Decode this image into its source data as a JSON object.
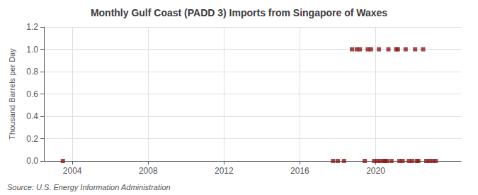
{
  "chart_data": {
    "type": "scatter",
    "title": "Monthly Gulf Coast (PADD 3) Imports from Singapore of Waxes",
    "ylabel": "Thousand Barrels per Day",
    "annotation": "Source: U.S. Energy Information Administration",
    "color": "#8b1a1a",
    "marker": "square",
    "grid": true,
    "xlim": [
      2002.5,
      2024.5
    ],
    "xticks": [
      2004,
      2008,
      2012,
      2016,
      2020
    ],
    "ylim": [
      0.0,
      1.2
    ],
    "yticks": [
      {
        "value": 0.0,
        "label": "0.0"
      },
      0.2,
      0.4,
      0.6,
      0.8,
      {
        "value": 1.0,
        "label": "1.0"
      },
      1.2
    ],
    "x": [
      2003.5,
      2017.75,
      2018.0,
      2018.33,
      2018.75,
      2019.0,
      2019.17,
      2019.42,
      2019.58,
      2019.75,
      2019.92,
      2020.08,
      2020.17,
      2020.25,
      2020.42,
      2020.5,
      2020.58,
      2020.67,
      2020.83,
      2021.08,
      2021.17,
      2021.25,
      2021.42,
      2021.58,
      2021.75,
      2021.92,
      2022.08,
      2022.17,
      2022.25,
      2022.5,
      2022.67,
      2022.83,
      2023.0,
      2023.17
    ],
    "values": [
      0.0,
      0.0,
      0.0,
      0.0,
      1.0,
      1.0,
      1.0,
      0.0,
      1.0,
      1.0,
      0.0,
      0.0,
      1.0,
      0.0,
      0.0,
      0.0,
      0.0,
      1.0,
      0.0,
      1.0,
      1.0,
      0.0,
      0.0,
      1.0,
      0.0,
      0.0,
      1.0,
      0.0,
      0.0,
      1.0,
      0.0,
      0.0,
      0.0,
      0.0
    ]
  }
}
